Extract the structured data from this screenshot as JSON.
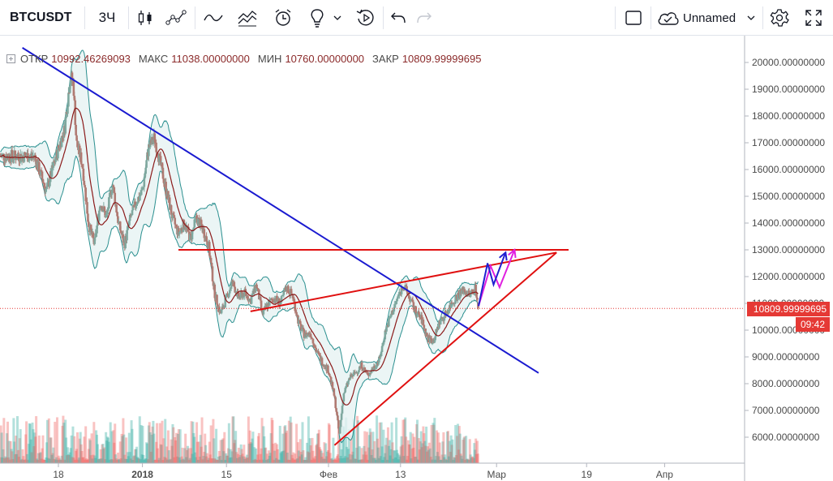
{
  "toolbar": {
    "symbol": "BTCUSDT",
    "interval": "3Ч",
    "layout_name": "Unnamed",
    "icons": [
      "candles-icon",
      "indicators-icon",
      "compare-line-icon",
      "multi-line-icon",
      "alert-icon",
      "idea-icon",
      "replay-icon",
      "undo-icon",
      "redo-icon",
      "fullscreen-box-icon",
      "cloud-icon",
      "settings-icon",
      "expand-icon"
    ]
  },
  "legend": {
    "open_label": "ОТКР",
    "open_value": "10992.46269093",
    "high_label": "МАКС",
    "high_value": "11038.00000000",
    "low_label": "МИН",
    "low_value": "10760.00000000",
    "close_label": "ЗАКР",
    "close_value": "10809.99999695"
  },
  "last_price_tag": "10809.99999695",
  "countdown_tag": "09:42",
  "colors": {
    "up_candle": "#26a69a",
    "down_candle": "#ef5350",
    "trendline": "#1a1ad0",
    "resistance": "#e01010",
    "bollinger": "#2a8f8f",
    "bollinger_fill": "#e6f3f3",
    "ma": "#8b1a1a",
    "arrow_blue": "#2020d0",
    "arrow_magenta": "#e020e0",
    "price_tag": "#e53935"
  },
  "chart_data": {
    "type": "candlestick",
    "y_axis": {
      "ticks": [
        6000,
        7000,
        8000,
        9000,
        10000,
        11000,
        12000,
        13000,
        14000,
        15000,
        16000,
        17000,
        18000,
        19000,
        20000
      ],
      "tick_labels": [
        "6000.00000000",
        "7000.00000000",
        "8000.00000000",
        "9000.00000000",
        "10000.00000000",
        "11000.00000000",
        "12000.00000000",
        "13000.00000000",
        "14000.00000000",
        "15000.00000000",
        "16000.00000000",
        "17000.00000000",
        "18000.00000000",
        "19000.00000000",
        "20000.00000000"
      ],
      "range": [
        5300,
        20400
      ]
    },
    "x_axis": {
      "tick_labels": [
        "18",
        "2018",
        "15",
        "Фев",
        "13",
        "Мар",
        "19",
        "Апр"
      ],
      "tick_days": [
        0,
        14,
        28,
        45,
        57,
        73,
        88,
        101
      ]
    },
    "price_path": [
      [
        -4,
        16500
      ],
      [
        -2,
        15200
      ],
      [
        0,
        16800
      ],
      [
        1,
        17500
      ],
      [
        2,
        19500
      ],
      [
        2.5,
        19200
      ],
      [
        3,
        17000
      ],
      [
        4,
        16200
      ],
      [
        5,
        14000
      ],
      [
        6,
        13200
      ],
      [
        7,
        14800
      ],
      [
        8,
        14200
      ],
      [
        9,
        15500
      ],
      [
        10,
        14000
      ],
      [
        11,
        13200
      ],
      [
        12,
        14200
      ],
      [
        13,
        14800
      ],
      [
        14,
        15200
      ],
      [
        15,
        16800
      ],
      [
        16,
        17200
      ],
      [
        17,
        16200
      ],
      [
        18,
        15200
      ],
      [
        19,
        14200
      ],
      [
        20,
        13600
      ],
      [
        21,
        14000
      ],
      [
        22,
        13400
      ],
      [
        23,
        14200
      ],
      [
        24,
        13800
      ],
      [
        25,
        13200
      ],
      [
        26,
        11400
      ],
      [
        27,
        10600
      ],
      [
        28,
        11200
      ],
      [
        29,
        11800
      ],
      [
        30,
        11200
      ],
      [
        31,
        11400
      ],
      [
        32,
        11100
      ],
      [
        33,
        11700
      ],
      [
        34,
        10600
      ],
      [
        35,
        11000
      ],
      [
        36,
        11200
      ],
      [
        37,
        11000
      ],
      [
        38,
        11600
      ],
      [
        39,
        11300
      ],
      [
        40,
        10300
      ],
      [
        41,
        9800
      ],
      [
        42,
        9900
      ],
      [
        43,
        9200
      ],
      [
        44,
        8800
      ],
      [
        45,
        8500
      ],
      [
        46,
        7500
      ],
      [
        46.8,
        6100
      ],
      [
        47.5,
        7600
      ],
      [
        48.5,
        8200
      ],
      [
        49.5,
        8400
      ],
      [
        50.5,
        8700
      ],
      [
        51.5,
        8300
      ],
      [
        52.5,
        8600
      ],
      [
        53.5,
        8900
      ],
      [
        54.5,
        10000
      ],
      [
        55.5,
        10600
      ],
      [
        56.5,
        11200
      ],
      [
        57.5,
        11700
      ],
      [
        58.5,
        11200
      ],
      [
        59.5,
        10700
      ],
      [
        60.5,
        10400
      ],
      [
        61.5,
        9700
      ],
      [
        62.5,
        9600
      ],
      [
        63.5,
        10300
      ],
      [
        64.5,
        10600
      ],
      [
        65.5,
        11000
      ],
      [
        66.5,
        11300
      ],
      [
        67.5,
        11500
      ],
      [
        68.5,
        11300
      ],
      [
        69.5,
        11600
      ],
      [
        70,
        10810
      ]
    ],
    "annotations": {
      "descending_trendline": [
        [
          -6,
          20550
        ],
        [
          80,
          8400
        ]
      ],
      "horizontal_resistance": [
        [
          20,
          13000
        ],
        [
          85,
          13000
        ]
      ],
      "rising_resistance": [
        [
          32,
          10700
        ],
        [
          83,
          12900
        ]
      ],
      "rising_support": [
        [
          46,
          5700
        ],
        [
          83,
          12900
        ]
      ],
      "projection_blue": [
        [
          70,
          10900
        ],
        [
          71.5,
          12500
        ],
        [
          72.5,
          11700
        ],
        [
          74.5,
          12900
        ]
      ],
      "projection_magenta": [
        [
          70,
          10900
        ],
        [
          72,
          12400
        ],
        [
          73.5,
          11600
        ],
        [
          76,
          13000
        ]
      ]
    }
  }
}
